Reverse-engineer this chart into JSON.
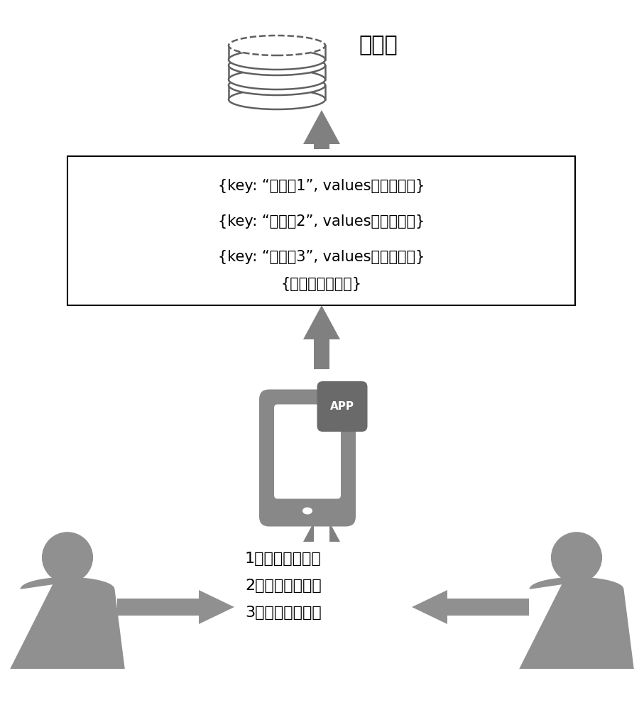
{
  "background_color": "#ffffff",
  "arrow_color": "#808080",
  "person_color": "#909090",
  "rainbow_label": "彩虹表",
  "box_lines": [
    "{key: “关键词1”, values：特征向量}",
    "{key: “关键词2”, values：特征向量}",
    "{key: “关键词3”, values：特征向量}",
    "{特征词输出集合}"
  ],
  "bottom_labels": [
    "1、文本主题内容",
    "2、图片主题内容",
    "3、语音主题内容"
  ],
  "font_size_box": 15,
  "font_size_rainbow": 22,
  "font_size_bottom": 16
}
